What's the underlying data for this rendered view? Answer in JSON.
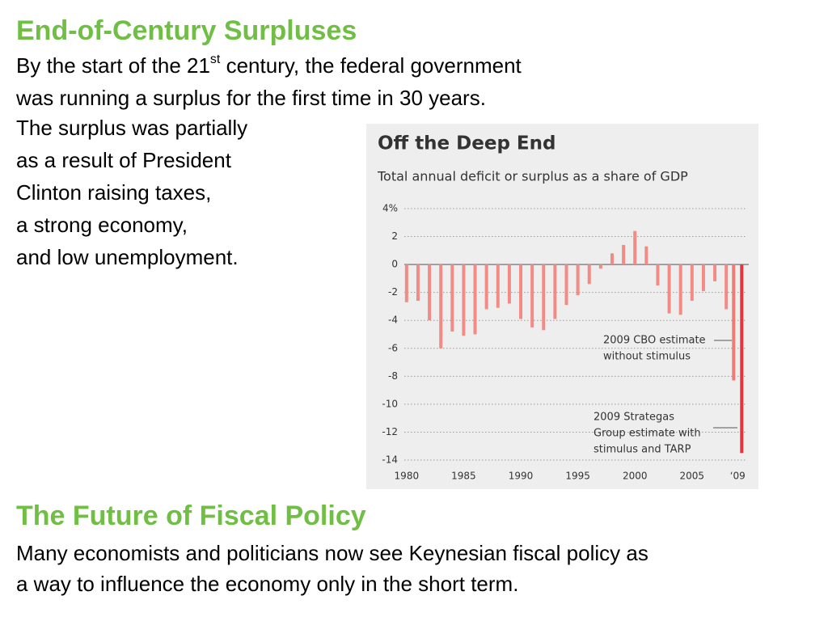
{
  "slide": {
    "title": "End-of-Century Surpluses",
    "intro": [
      "By the start of the 21",
      "st",
      " century, the federal government"
    ],
    "lines": [
      "was running a surplus for the first time in 30 years.",
      "The surplus was partially",
      "as a result of President",
      "Clinton raising taxes,",
      "a strong economy,",
      "and low unemployment."
    ],
    "title2": "The Future of Fiscal Policy",
    "lines2": [
      "Many economists and politicians now see Keynesian fiscal policy as",
      "a way to influence the economy only in the short term."
    ]
  },
  "chart_data": {
    "type": "bar",
    "title": "Off the Deep End",
    "subtitle": "Total annual deficit or surplus as a share of GDP",
    "x": [
      1980,
      1981,
      1982,
      1983,
      1984,
      1985,
      1986,
      1987,
      1988,
      1989,
      1990,
      1991,
      1992,
      1993,
      1994,
      1995,
      1996,
      1997,
      1998,
      1999,
      2000,
      2001,
      2002,
      2003,
      2004,
      2005,
      2006,
      2007,
      2008
    ],
    "values": [
      -2.7,
      -2.6,
      -4.0,
      -6.0,
      -4.8,
      -5.1,
      -5.0,
      -3.2,
      -3.1,
      -2.8,
      -3.9,
      -4.5,
      -4.7,
      -3.9,
      -2.9,
      -2.2,
      -1.4,
      -0.3,
      0.8,
      1.4,
      2.4,
      1.3,
      -1.5,
      -3.5,
      -3.6,
      -2.6,
      -1.9,
      -1.2,
      -3.2
    ],
    "color": "#f28b85",
    "annotations": [
      {
        "text": [
          "2009 CBO estimate",
          "without stimulus"
        ],
        "x": 2009,
        "value": -8.3,
        "color": "#f07a74"
      },
      {
        "text": [
          "2009 Strategas",
          "Group estimate with",
          "stimulus and TARP"
        ],
        "x": 2009,
        "value": -13.5,
        "color": "#e8323c"
      }
    ],
    "xlim": [
      1979.8,
      2009.9
    ],
    "xticks": [
      1980,
      1985,
      1990,
      1995,
      2000,
      2005,
      {
        "value": 2009,
        "label": "‘09"
      }
    ],
    "ylim": [
      -14,
      4
    ],
    "yticks": [
      {
        "value": 4,
        "label": "4%"
      },
      2,
      0,
      -2,
      -4,
      -6,
      -8,
      -10,
      -12,
      -14
    ],
    "grid": true
  }
}
